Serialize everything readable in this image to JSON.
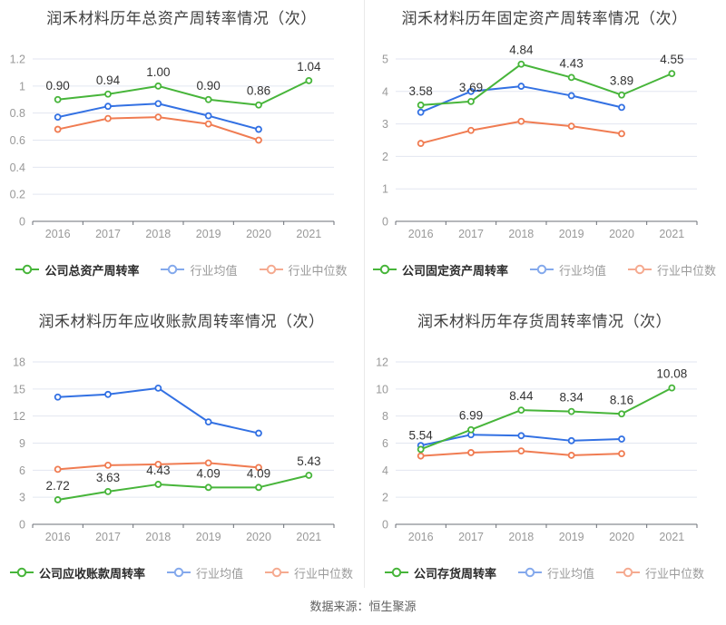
{
  "page": {
    "source_note": "数据来源：恒生聚源"
  },
  "palette": {
    "company_line": "#47b53a",
    "mean_line": "#3371e3",
    "median_line": "#f07c52",
    "mean_legend": "#84a9ec",
    "median_legend": "#f5aa90",
    "grid": "#e2e6f0",
    "axis": "#6b6f77",
    "tick_text": "#999999",
    "value_text": "#333333"
  },
  "chart_data": [
    {
      "type": "line",
      "title": "润禾材料历年总资产周转率情况（次）",
      "categories": [
        "2016",
        "2017",
        "2018",
        "2019",
        "2020",
        "2021"
      ],
      "ylim": [
        0,
        1.2
      ],
      "yticks": [
        0,
        0.2,
        0.4,
        0.6,
        0.8,
        1,
        1.2
      ],
      "ytick_labels": [
        "0",
        "0.2",
        "0.4",
        "0.6",
        "0.8",
        "1",
        "1.2"
      ],
      "grid": true,
      "legend_position": "bottom",
      "series": [
        {
          "name": "公司总资产周转率",
          "role": "company",
          "values": [
            0.9,
            0.94,
            1.0,
            0.9,
            0.86,
            1.04
          ],
          "value_labels": [
            "0.90",
            "0.94",
            "1.00",
            "0.90",
            "0.86",
            "1.04"
          ]
        },
        {
          "name": "行业均值",
          "role": "mean",
          "values": [
            0.77,
            0.85,
            0.87,
            0.78,
            0.68,
            null
          ]
        },
        {
          "name": "行业中位数",
          "role": "median",
          "values": [
            0.68,
            0.76,
            0.77,
            0.72,
            0.6,
            null
          ]
        }
      ]
    },
    {
      "type": "line",
      "title": "润禾材料历年固定资产周转率情况（次）",
      "categories": [
        "2016",
        "2017",
        "2018",
        "2019",
        "2020",
        "2021"
      ],
      "ylim": [
        0,
        5
      ],
      "yticks": [
        0,
        1,
        2,
        3,
        4,
        5
      ],
      "ytick_labels": [
        "0",
        "1",
        "2",
        "3",
        "4",
        "5"
      ],
      "grid": true,
      "legend_position": "bottom",
      "series": [
        {
          "name": "公司固定资产周转率",
          "role": "company",
          "values": [
            3.58,
            3.69,
            4.84,
            4.43,
            3.89,
            4.55
          ],
          "value_labels": [
            "3.58",
            "3.69",
            "4.84",
            "4.43",
            "3.89",
            "4.55"
          ]
        },
        {
          "name": "行业均值",
          "role": "mean",
          "values": [
            3.36,
            4.0,
            4.16,
            3.87,
            3.51,
            null
          ]
        },
        {
          "name": "行业中位数",
          "role": "median",
          "values": [
            2.4,
            2.8,
            3.08,
            2.93,
            2.7,
            null
          ]
        }
      ]
    },
    {
      "type": "line",
      "title": "润禾材料历年应收账款周转率情况（次）",
      "categories": [
        "2016",
        "2017",
        "2018",
        "2019",
        "2020",
        "2021"
      ],
      "ylim": [
        0,
        18
      ],
      "yticks": [
        0,
        3,
        6,
        9,
        12,
        15,
        18
      ],
      "ytick_labels": [
        "0",
        "3",
        "6",
        "9",
        "12",
        "15",
        "18"
      ],
      "grid": true,
      "legend_position": "bottom",
      "series": [
        {
          "name": "公司应收账款周转率",
          "role": "company",
          "values": [
            2.72,
            3.63,
            4.43,
            4.09,
            4.09,
            5.43
          ],
          "value_labels": [
            "2.72",
            "3.63",
            "4.43",
            "4.09",
            "4.09",
            "5.43"
          ]
        },
        {
          "name": "行业均值",
          "role": "mean",
          "values": [
            14.1,
            14.4,
            15.1,
            11.35,
            10.1,
            null
          ]
        },
        {
          "name": "行业中位数",
          "role": "median",
          "values": [
            6.1,
            6.55,
            6.65,
            6.8,
            6.3,
            null
          ]
        }
      ]
    },
    {
      "type": "line",
      "title": "润禾材料历年存货周转率情况（次）",
      "categories": [
        "2016",
        "2017",
        "2018",
        "2019",
        "2020",
        "2021"
      ],
      "ylim": [
        0,
        12
      ],
      "yticks": [
        0,
        2,
        4,
        6,
        8,
        10,
        12
      ],
      "ytick_labels": [
        "0",
        "2",
        "4",
        "6",
        "8",
        "10",
        "12"
      ],
      "grid": true,
      "legend_position": "bottom",
      "series": [
        {
          "name": "公司存货周转率",
          "role": "company",
          "values": [
            5.54,
            6.99,
            8.44,
            8.34,
            8.16,
            10.08
          ],
          "value_labels": [
            "5.54",
            "6.99",
            "8.44",
            "8.34",
            "8.16",
            "10.08"
          ]
        },
        {
          "name": "行业均值",
          "role": "mean",
          "values": [
            5.82,
            6.62,
            6.55,
            6.18,
            6.3,
            null
          ]
        },
        {
          "name": "行业中位数",
          "role": "median",
          "values": [
            5.05,
            5.3,
            5.42,
            5.1,
            5.22,
            null
          ]
        }
      ]
    }
  ]
}
